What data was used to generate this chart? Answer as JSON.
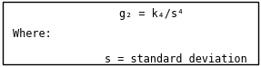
{
  "where_label": "Where:",
  "s_line": "s = standard deviation",
  "bg_color": "#ffffff",
  "border_color": "#000000",
  "text_color": "#000000",
  "font_size": 8.5,
  "fig_width": 2.87,
  "fig_height": 0.74,
  "dpi": 100
}
